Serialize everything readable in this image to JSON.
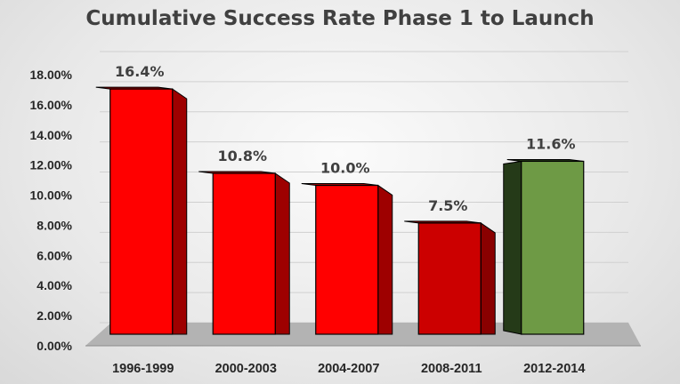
{
  "chart_data": {
    "type": "bar",
    "title": "Cumulative Success Rate Phase 1 to Launch",
    "xlabel": "",
    "ylabel": "",
    "categories": [
      "1996-1999",
      "2000-2003",
      "2004-2007",
      "2008-2011",
      "2012-2014"
    ],
    "values": [
      16.4,
      10.8,
      10.0,
      7.5,
      11.6
    ],
    "data_labels": [
      "16.4%",
      "10.8%",
      "10.0%",
      "7.5%",
      "11.6%"
    ],
    "ylim": [
      0,
      18
    ],
    "yticks": [
      "0.00%",
      "2.00%",
      "4.00%",
      "6.00%",
      "8.00%",
      "10.00%",
      "12.00%",
      "14.00%",
      "16.00%",
      "18.00%"
    ],
    "grid": true,
    "legend": "none",
    "bar_colors": [
      "#ff0000",
      "#ff0000",
      "#ff0000",
      "#cc0000",
      "#6e9a45"
    ],
    "bar_side_colors": [
      "#9e0000",
      "#9e0000",
      "#9e0000",
      "#8a0000",
      "#253a18"
    ]
  }
}
